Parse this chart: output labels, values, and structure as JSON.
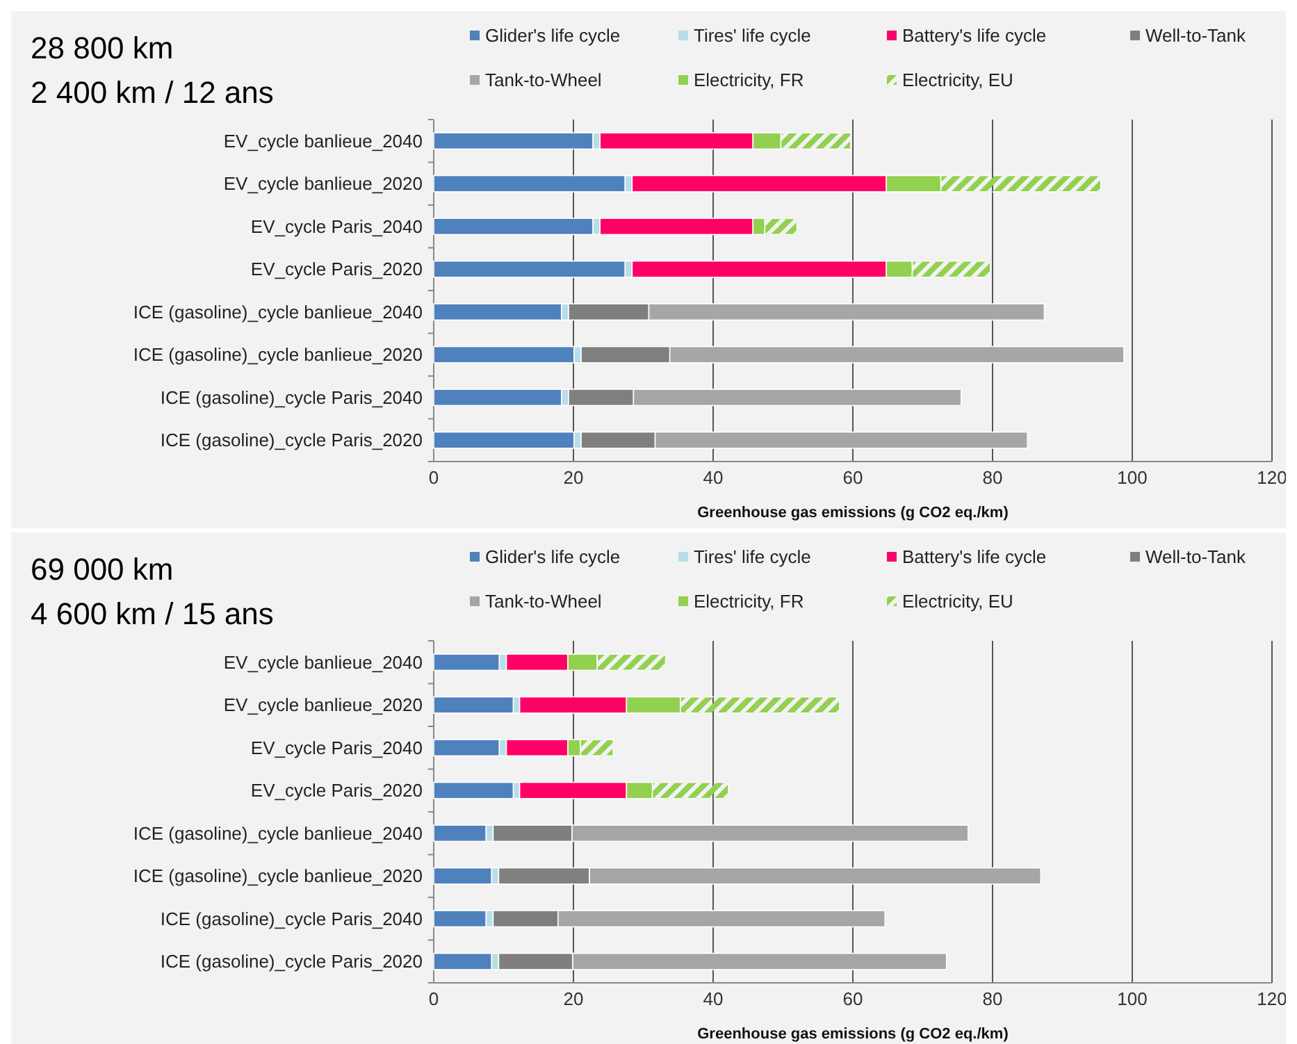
{
  "chart_data": [
    {
      "type": "bar",
      "orientation": "horizontal",
      "stacked": true,
      "title": "28 800 km",
      "subtitle": "2 400 km / 12 ans",
      "xlabel": "Greenhouse gas emissions (g CO2 eq./km)",
      "categories": [
        "EV_cycle banlieue_2040",
        "EV_cycle banlieue_2020",
        "EV_cycle Paris_2040",
        "EV_cycle Paris_2020",
        "ICE (gasoline)_cycle banlieue_2040",
        "ICE (gasoline)_cycle banlieue_2020",
        "ICE (gasoline)_cycle Paris_2040",
        "ICE (gasoline)_cycle Paris_2020"
      ],
      "xlim": [
        0,
        120
      ],
      "xticks": [
        0,
        20,
        40,
        60,
        80,
        100,
        120
      ],
      "grid": "x",
      "legend": "top",
      "series": [
        {
          "name": "Glider's life cycle",
          "color": "#4f81bd",
          "values": [
            22.8,
            27.4,
            22.8,
            27.4,
            18.3,
            20.1,
            18.3,
            20.1
          ]
        },
        {
          "name": "Tires' life cycle",
          "color": "#b7dde8",
          "values": [
            1.0,
            1.0,
            1.0,
            1.0,
            1.0,
            1.0,
            1.0,
            1.0
          ]
        },
        {
          "name": "Battery's life cycle",
          "color": "#ff0066",
          "values": [
            21.9,
            36.4,
            21.9,
            36.4,
            0,
            0,
            0,
            0
          ]
        },
        {
          "name": "Well-to-Tank",
          "color": "#7f7f7f",
          "values": [
            0,
            0,
            0,
            0,
            11.5,
            12.7,
            9.3,
            10.6
          ]
        },
        {
          "name": "Tank-to-Wheel",
          "color": "#a6a6a6",
          "values": [
            0,
            0,
            0,
            0,
            56.6,
            65.0,
            46.9,
            53.3
          ]
        },
        {
          "name": "Electricity, FR",
          "color": "#92d050",
          "values": [
            4.0,
            7.8,
            1.7,
            3.7,
            0,
            0,
            0,
            0
          ]
        },
        {
          "name": "Electricity, EU",
          "color": "#92d050",
          "values": [
            10.0,
            22.9,
            4.6,
            11.2,
            0,
            0,
            0,
            0
          ]
        }
      ]
    },
    {
      "type": "bar",
      "orientation": "horizontal",
      "stacked": true,
      "title": "69 000 km",
      "subtitle": "4 600 km / 15 ans",
      "xlabel": "Greenhouse gas emissions (g CO2 eq./km)",
      "categories": [
        "EV_cycle banlieue_2040",
        "EV_cycle banlieue_2020",
        "EV_cycle Paris_2040",
        "EV_cycle Paris_2020",
        "ICE (gasoline)_cycle banlieue_2040",
        "ICE (gasoline)_cycle banlieue_2020",
        "ICE (gasoline)_cycle Paris_2040",
        "ICE (gasoline)_cycle Paris_2020"
      ],
      "xlim": [
        0,
        120
      ],
      "xticks": [
        0,
        20,
        40,
        60,
        80,
        100,
        120
      ],
      "grid": "x",
      "legend": "top",
      "series": [
        {
          "name": "Glider's life cycle",
          "color": "#4f81bd",
          "values": [
            9.4,
            11.4,
            9.4,
            11.4,
            7.5,
            8.3,
            7.5,
            8.3
          ]
        },
        {
          "name": "Tires' life cycle",
          "color": "#b7dde8",
          "values": [
            1.0,
            0.9,
            1.0,
            0.9,
            1.0,
            1.0,
            1.0,
            1.0
          ]
        },
        {
          "name": "Battery's life cycle",
          "color": "#ff0066",
          "values": [
            8.8,
            15.3,
            8.8,
            15.3,
            0,
            0,
            0,
            0
          ]
        },
        {
          "name": "Well-to-Tank",
          "color": "#7f7f7f",
          "values": [
            0,
            0,
            0,
            0,
            11.3,
            13.0,
            9.3,
            10.6
          ]
        },
        {
          "name": "Tank-to-Wheel",
          "color": "#a6a6a6",
          "values": [
            0,
            0,
            0,
            0,
            56.7,
            64.6,
            46.8,
            53.5
          ]
        },
        {
          "name": "Electricity, FR",
          "color": "#92d050",
          "values": [
            4.2,
            7.7,
            1.8,
            3.7,
            0,
            0,
            0,
            0
          ]
        },
        {
          "name": "Electricity, EU",
          "color": "#92d050",
          "values": [
            9.8,
            22.8,
            4.7,
            10.9,
            0,
            0,
            0,
            0
          ]
        }
      ]
    }
  ]
}
